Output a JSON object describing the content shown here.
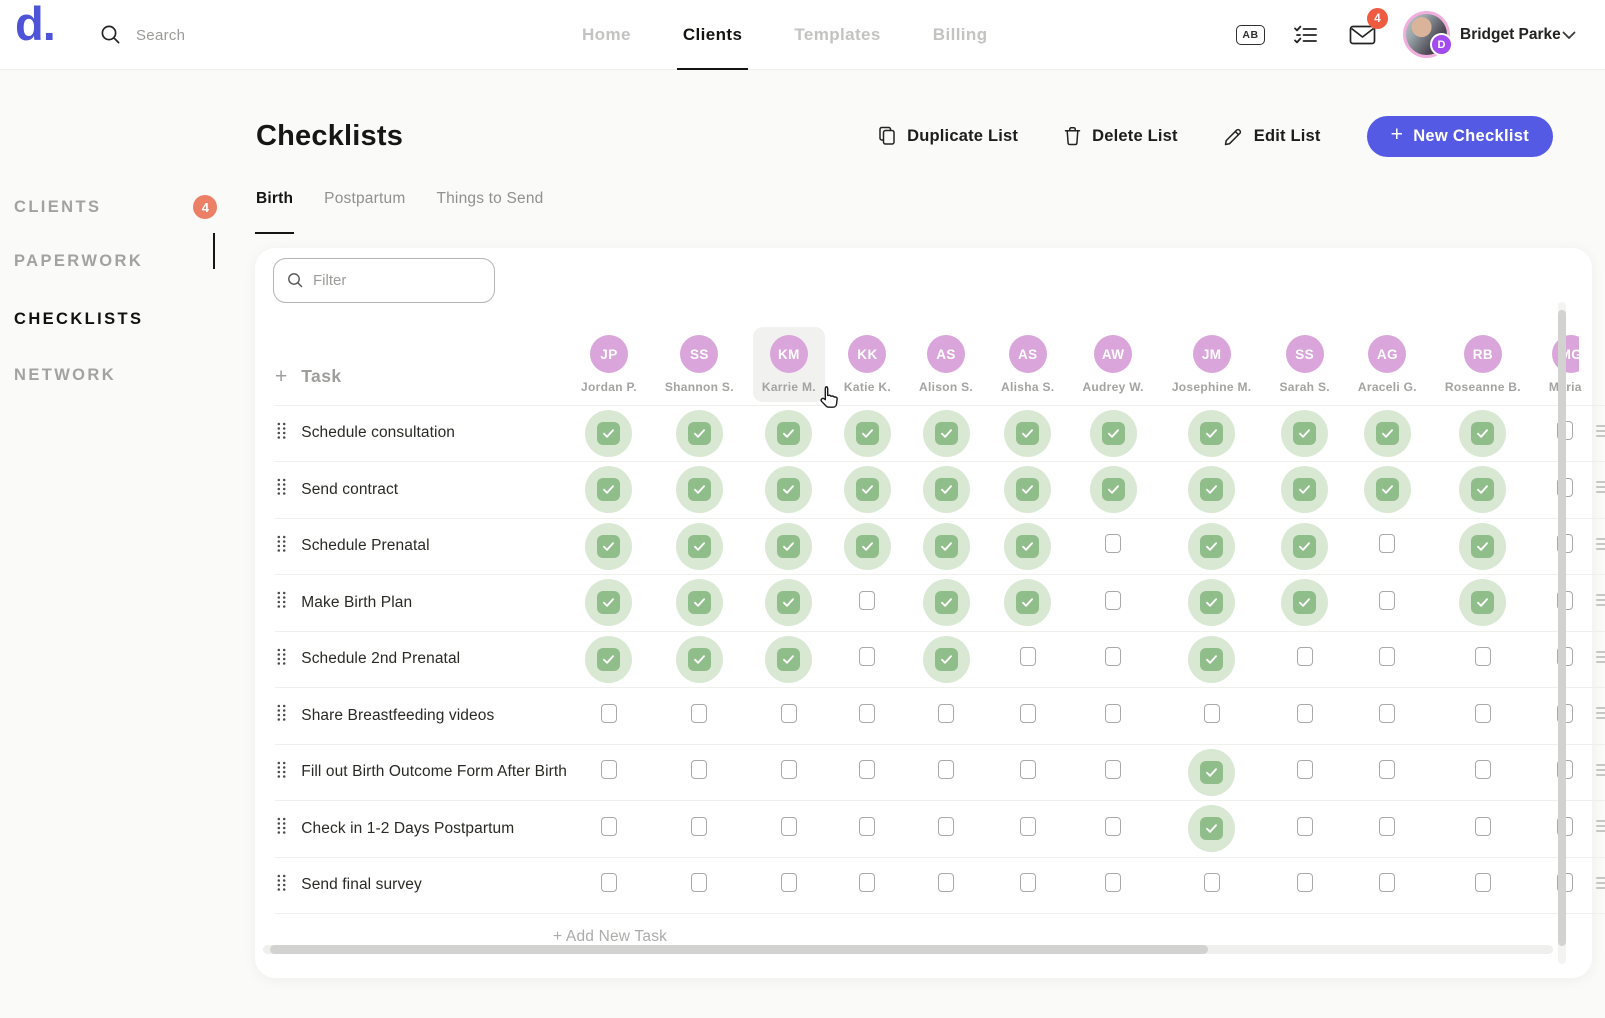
{
  "header": {
    "logo": "d.",
    "search_placeholder": "Search",
    "nav": [
      {
        "label": "Home",
        "active": false
      },
      {
        "label": "Clients",
        "active": true
      },
      {
        "label": "Templates",
        "active": false
      },
      {
        "label": "Billing",
        "active": false
      }
    ],
    "shortcut_badge": "AB",
    "mail_badge": "4",
    "user": {
      "name": "Bridget Parke",
      "badge_letter": "D"
    }
  },
  "sidebar": {
    "items": [
      {
        "label": "CLIENTS",
        "badge": "4",
        "active": false
      },
      {
        "label": "PAPERWORK",
        "active": false
      },
      {
        "label": "CHECKLISTS",
        "active": true
      },
      {
        "label": "NETWORK",
        "active": false
      }
    ]
  },
  "page": {
    "title": "Checklists",
    "actions": {
      "duplicate": "Duplicate List",
      "delete": "Delete List",
      "edit": "Edit List",
      "new_checklist": "New Checklist"
    },
    "tabs": [
      {
        "label": "Birth",
        "active": true
      },
      {
        "label": "Postpartum",
        "active": false
      },
      {
        "label": "Things to Send",
        "active": false
      }
    ],
    "filter_placeholder": "Filter"
  },
  "table": {
    "task_header": "Task",
    "add_new_task": "+ Add New Task",
    "clients": [
      {
        "initials": "JP",
        "name": "Jordan P."
      },
      {
        "initials": "SS",
        "name": "Shannon S."
      },
      {
        "initials": "KM",
        "name": "Karrie M.",
        "hovered": true
      },
      {
        "initials": "KK",
        "name": "Katie K."
      },
      {
        "initials": "AS",
        "name": "Alison S."
      },
      {
        "initials": "AS",
        "name": "Alisha S."
      },
      {
        "initials": "AW",
        "name": "Audrey W."
      },
      {
        "initials": "JM",
        "name": "Josephine M."
      },
      {
        "initials": "SS",
        "name": "Sarah S."
      },
      {
        "initials": "AG",
        "name": "Araceli G."
      },
      {
        "initials": "RB",
        "name": "Roseanne B."
      },
      {
        "initials": "MG",
        "name": "Maria",
        "clipped": true
      }
    ],
    "tasks": [
      {
        "label": "Schedule consultation",
        "checks": [
          1,
          1,
          1,
          1,
          1,
          1,
          1,
          1,
          1,
          1,
          1,
          0
        ]
      },
      {
        "label": "Send contract",
        "checks": [
          1,
          1,
          1,
          1,
          1,
          1,
          1,
          1,
          1,
          1,
          1,
          0
        ]
      },
      {
        "label": "Schedule Prenatal",
        "checks": [
          1,
          1,
          1,
          1,
          1,
          1,
          0,
          1,
          1,
          0,
          1,
          0
        ]
      },
      {
        "label": "Make Birth Plan",
        "checks": [
          1,
          1,
          1,
          0,
          1,
          1,
          0,
          1,
          1,
          0,
          1,
          0
        ]
      },
      {
        "label": "Schedule 2nd Prenatal",
        "checks": [
          1,
          1,
          1,
          0,
          1,
          0,
          0,
          1,
          0,
          0,
          0,
          0
        ]
      },
      {
        "label": "Share Breastfeeding videos",
        "checks": [
          0,
          0,
          0,
          0,
          0,
          0,
          0,
          0,
          0,
          0,
          0,
          0
        ]
      },
      {
        "label": "Fill out Birth Outcome Form After Birth",
        "checks": [
          0,
          0,
          0,
          0,
          0,
          0,
          0,
          1,
          0,
          0,
          0,
          0
        ]
      },
      {
        "label": "Check in 1-2 Days Postpartum",
        "checks": [
          0,
          0,
          0,
          0,
          0,
          0,
          0,
          1,
          0,
          0,
          0,
          0
        ]
      },
      {
        "label": "Send final survey",
        "checks": [
          0,
          0,
          0,
          0,
          0,
          0,
          0,
          0,
          0,
          0,
          0,
          0
        ]
      }
    ]
  },
  "colors": {
    "accent_indigo": "#555AE4",
    "badge_salmon": "#EC8066",
    "badge_red": "#EE5B41",
    "avatar_pink": "#D9A5DA",
    "check_green": "#90BE8A",
    "check_green_bg": "#D9E8D3",
    "page_bg": "#FAFAF8"
  }
}
